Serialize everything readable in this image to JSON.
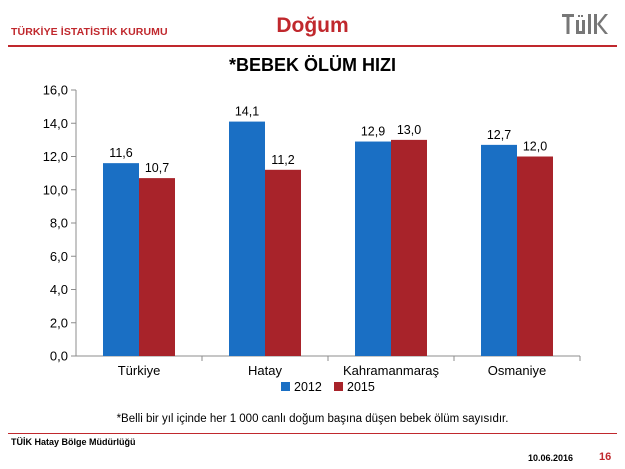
{
  "header": {
    "org_name": "TÜRKİYE İSTATİSTİK KURUMU",
    "page_title": "Doğum",
    "logo_icon": "tuik-logo-icon",
    "accent_color": "#c0282d"
  },
  "chart_data": {
    "type": "bar",
    "title": "*BEBEK ÖLÜM HIZI",
    "categories": [
      "Türkiye",
      "Hatay",
      "Kahramanmaraş",
      "Osmaniye"
    ],
    "series": [
      {
        "name": "2012",
        "values": [
          11.6,
          14.1,
          12.9,
          12.7
        ],
        "color": "#1a6fc4"
      },
      {
        "name": "2015",
        "values": [
          10.7,
          11.2,
          13.0,
          12.0
        ],
        "color": "#a8232a"
      }
    ],
    "value_labels": [
      [
        "11,6",
        "14,1",
        "12,9",
        "12,7"
      ],
      [
        "10,7",
        "11,2",
        "13,0",
        "12,0"
      ]
    ],
    "yticks": [
      "0,0",
      "2,0",
      "4,0",
      "6,0",
      "8,0",
      "10,0",
      "12,0",
      "14,0",
      "16,0"
    ],
    "ylim": [
      0,
      16
    ],
    "xlabel": "",
    "ylabel": "",
    "grid": false,
    "legend_position": "bottom"
  },
  "footnote": "*Belli bir yıl içinde her 1 000 canlı doğum başına düşen bebek ölüm sayısıdır.",
  "footer": {
    "office": "TÜİK Hatay Bölge Müdürlüğü",
    "date": "10.06.2016",
    "page_number": "16"
  }
}
